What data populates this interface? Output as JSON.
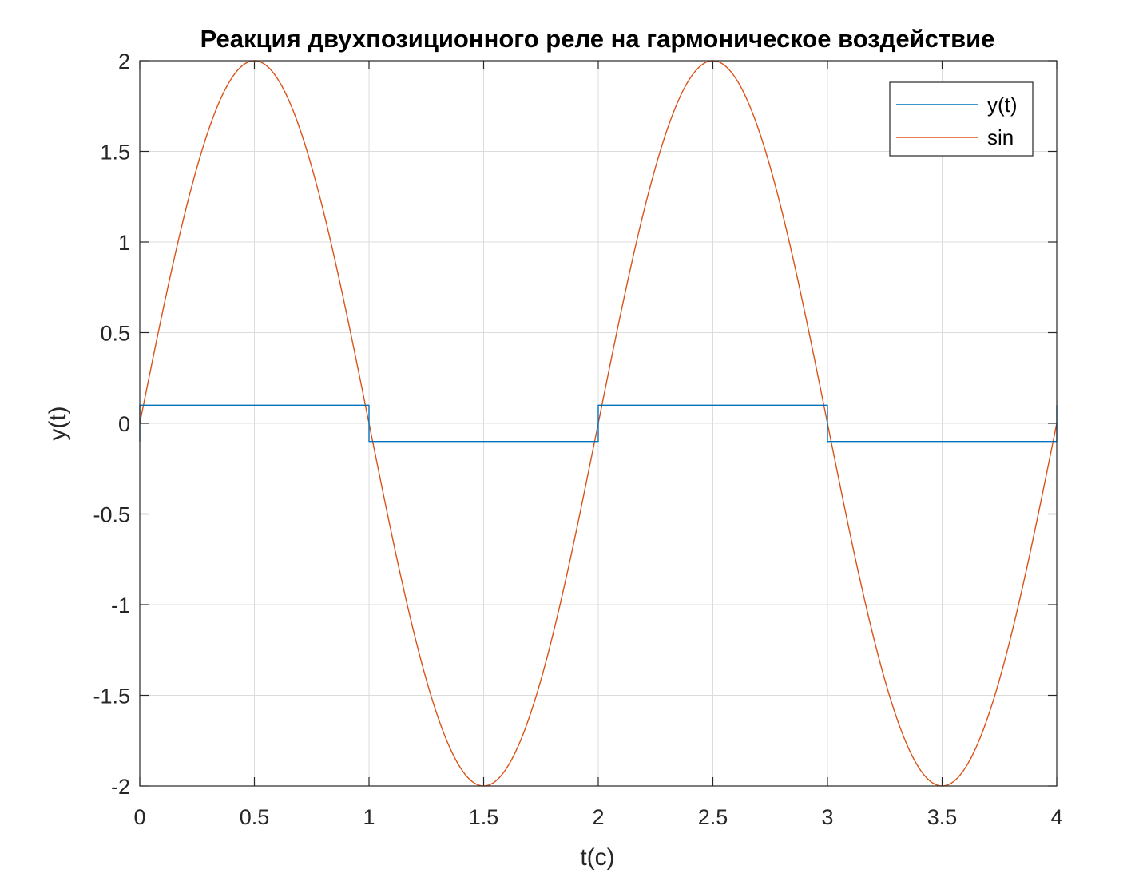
{
  "chart_data": {
    "type": "line",
    "title": "Реакция двухпозиционного реле на гармоническое воздействие",
    "xlabel": "t(c)",
    "ylabel": "y(t)",
    "xlim": [
      0,
      4
    ],
    "ylim": [
      -2,
      2
    ],
    "xticks": [
      0,
      0.5,
      1,
      1.5,
      2,
      2.5,
      3,
      3.5,
      4
    ],
    "xtick_labels": [
      "0",
      "0.5",
      "1",
      "1.5",
      "2",
      "2.5",
      "3",
      "3.5",
      "4"
    ],
    "yticks": [
      -2,
      -1.5,
      -1,
      -0.5,
      0,
      0.5,
      1,
      1.5,
      2
    ],
    "ytick_labels": [
      "-2",
      "-1.5",
      "-1",
      "-0.5",
      "0",
      "0.5",
      "1",
      "1.5",
      "2"
    ],
    "grid": true,
    "legend_position": "top-right",
    "series": [
      {
        "name": "y(t)",
        "color": "#0072BD",
        "x": [
          0,
          0,
          1,
          1,
          2,
          2,
          3,
          3,
          4,
          4
        ],
        "y": [
          -0.1,
          0.1,
          0.1,
          -0.1,
          -0.1,
          0.1,
          0.1,
          -0.1,
          -0.1,
          0.1
        ]
      },
      {
        "name": "sin",
        "color": "#D95319",
        "x": [
          0,
          0.05,
          0.1,
          0.15,
          0.2,
          0.25,
          0.3,
          0.35,
          0.4,
          0.45,
          0.5,
          0.55,
          0.6,
          0.65,
          0.7,
          0.75,
          0.8,
          0.85,
          0.9,
          0.95,
          1,
          1.05,
          1.1,
          1.15,
          1.2,
          1.25,
          1.3,
          1.35,
          1.4,
          1.45,
          1.5,
          1.55,
          1.6,
          1.65,
          1.7,
          1.75,
          1.8,
          1.85,
          1.9,
          1.95,
          2,
          2.05,
          2.1,
          2.15,
          2.2,
          2.25,
          2.3,
          2.35,
          2.4,
          2.45,
          2.5,
          2.55,
          2.6,
          2.65,
          2.7,
          2.75,
          2.8,
          2.85,
          2.9,
          2.95,
          3,
          3.05,
          3.1,
          3.15,
          3.2,
          3.25,
          3.3,
          3.35,
          3.4,
          3.45,
          3.5,
          3.55,
          3.6,
          3.65,
          3.7,
          3.75,
          3.8,
          3.85,
          3.9,
          3.95,
          4
        ],
        "y": [
          0,
          0.313,
          0.618,
          0.908,
          1.176,
          1.414,
          1.618,
          1.782,
          1.902,
          1.975,
          2,
          1.975,
          1.902,
          1.782,
          1.618,
          1.414,
          1.176,
          0.908,
          0.618,
          0.313,
          0,
          -0.313,
          -0.618,
          -0.908,
          -1.176,
          -1.414,
          -1.618,
          -1.782,
          -1.902,
          -1.975,
          -2,
          -1.975,
          -1.902,
          -1.782,
          -1.618,
          -1.414,
          -1.176,
          -0.908,
          -0.618,
          -0.313,
          0,
          0.313,
          0.618,
          0.908,
          1.176,
          1.414,
          1.618,
          1.782,
          1.902,
          1.975,
          2,
          1.975,
          1.902,
          1.782,
          1.618,
          1.414,
          1.176,
          0.908,
          0.618,
          0.313,
          0,
          -0.313,
          -0.618,
          -0.908,
          -1.176,
          -1.414,
          -1.618,
          -1.782,
          -1.902,
          -1.975,
          -2,
          -1.975,
          -1.902,
          -1.782,
          -1.618,
          -1.414,
          -1.176,
          -0.908,
          -0.618,
          -0.313,
          0
        ]
      }
    ]
  }
}
